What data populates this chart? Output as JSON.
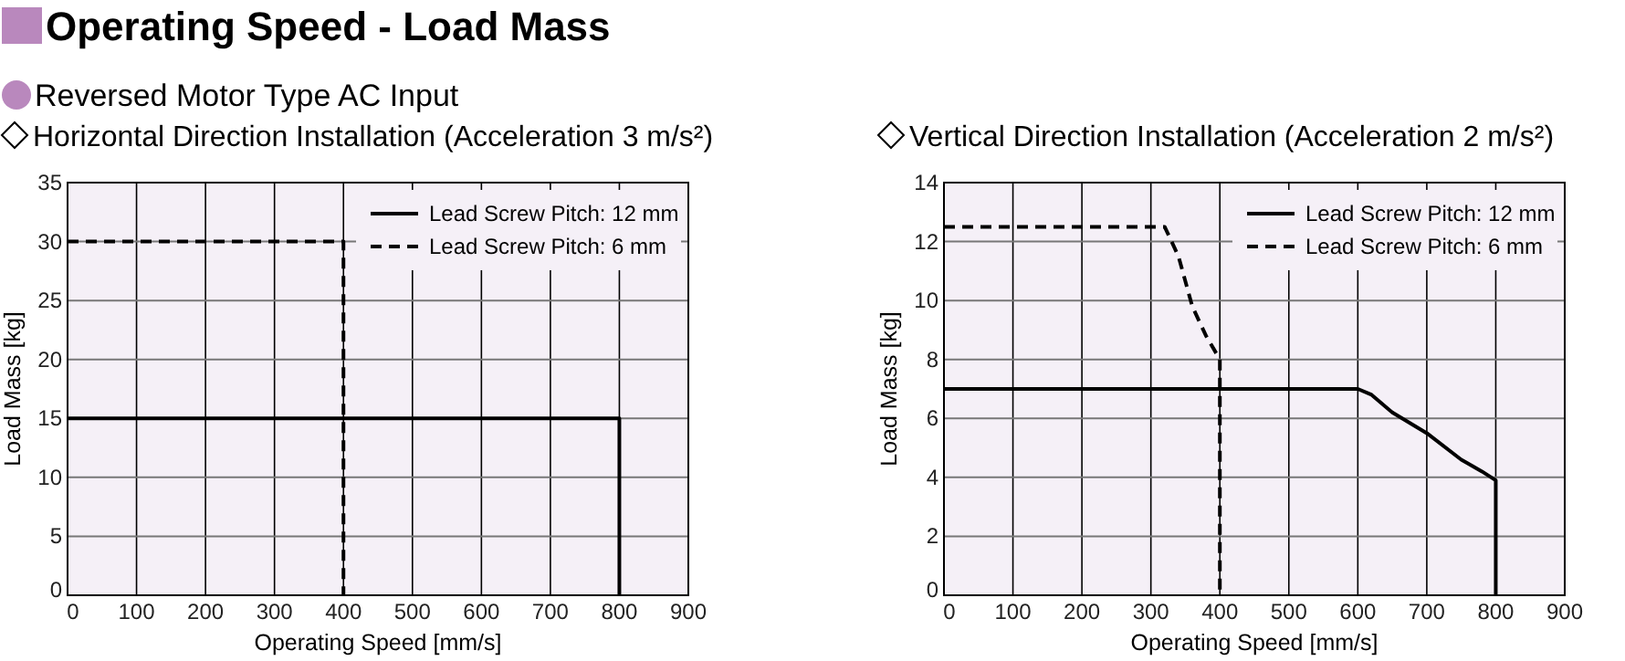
{
  "chart_data": [
    {
      "type": "line",
      "title": "Operating Speed - Load Mass",
      "subtitle": "Reversed Motor Type AC Input",
      "annotations": [
        "Horizontal Direction Installation (Acceleration 3 m/s²)"
      ],
      "xlabel": "Operating Speed [mm/s]",
      "ylabel": "Load Mass [kg]",
      "xlim": [
        0,
        900
      ],
      "xticks": [
        0,
        100,
        200,
        300,
        400,
        500,
        600,
        700,
        800,
        900
      ],
      "ylim": [
        0,
        35
      ],
      "yticks": [
        0,
        5,
        10,
        15,
        20,
        25,
        30,
        35
      ],
      "grid": true,
      "legend": "top right",
      "series": [
        {
          "name": "Lead Screw Pitch: 12 mm",
          "color": "#000000",
          "line_style": "solid",
          "x": [
            0,
            800,
            800
          ],
          "values": [
            15,
            15,
            0
          ]
        },
        {
          "name": "Lead Screw Pitch: 6 mm",
          "color": "#000000",
          "line_style": "dashed",
          "x": [
            0,
            400,
            400
          ],
          "values": [
            30,
            30,
            0
          ]
        }
      ]
    },
    {
      "type": "line",
      "title": "Vertical Direction Installation (Acceleration 2 m/s²)",
      "xlabel": "Operating Speed [mm/s]",
      "ylabel": "Load Mass [kg]",
      "xlim": [
        0,
        900
      ],
      "xticks": [
        0,
        100,
        200,
        300,
        400,
        500,
        600,
        700,
        800,
        900
      ],
      "ylim": [
        0,
        14
      ],
      "yticks": [
        0,
        2,
        4,
        6,
        8,
        10,
        12,
        14
      ],
      "grid": true,
      "legend": "top right",
      "series": [
        {
          "name": "Lead Screw Pitch: 12 mm",
          "color": "#000000",
          "line_style": "solid",
          "x": [
            0,
            600,
            620,
            650,
            700,
            750,
            780,
            800,
            800
          ],
          "values": [
            7,
            7,
            6.8,
            6.2,
            5.5,
            4.6,
            4.2,
            3.9,
            0
          ]
        },
        {
          "name": "Lead Screw Pitch: 6 mm",
          "color": "#000000",
          "line_style": "dashed",
          "x": [
            0,
            320,
            340,
            360,
            380,
            400,
            400
          ],
          "values": [
            12.5,
            12.5,
            11.5,
            9.8,
            8.8,
            8,
            0
          ]
        }
      ]
    }
  ]
}
